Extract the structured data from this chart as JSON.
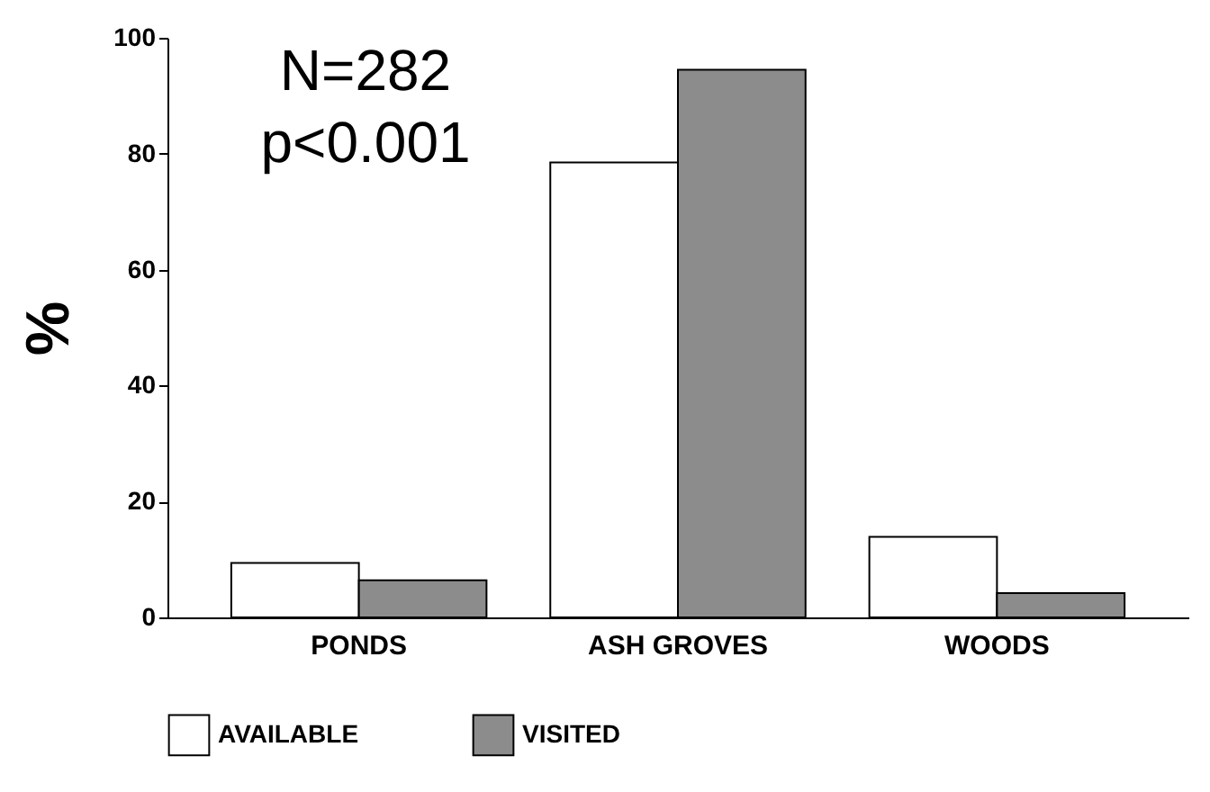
{
  "chart_data": {
    "type": "bar",
    "categories": [
      "PONDS",
      "ASH GROVES",
      "WOODS"
    ],
    "series": [
      {
        "name": "AVAILABLE",
        "color": "#ffffff",
        "values": [
          9.4,
          78.5,
          13.9
        ]
      },
      {
        "name": "VISITED",
        "color": "#8c8c8c",
        "values": [
          6.4,
          94.5,
          4.2
        ]
      }
    ],
    "ylabel": "%",
    "ylim": [
      0,
      100
    ],
    "yticks": [
      0,
      20,
      40,
      60,
      80,
      100
    ],
    "grid": false,
    "legend": "bottom",
    "annotations": [
      "N=282",
      "p<0.001"
    ]
  }
}
